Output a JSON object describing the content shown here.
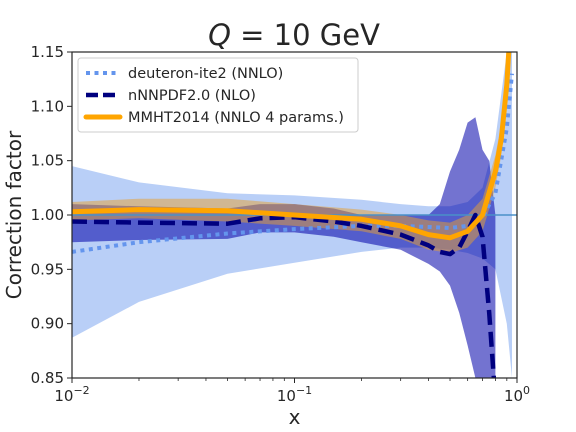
{
  "chart_data": {
    "type": "line",
    "title": {
      "italic_part": "Q",
      "rest": " = 10 GeV"
    },
    "xlabel": "x",
    "ylabel": "Correction factor",
    "xscale": "log",
    "xlim": [
      0.01,
      1
    ],
    "ylim": [
      0.85,
      1.15
    ],
    "grid": false,
    "legend_position": "top-left",
    "x_ticks": [
      {
        "value": 0.01,
        "base": "10",
        "exp": "−2"
      },
      {
        "value": 0.1,
        "base": "10",
        "exp": "−1"
      },
      {
        "value": 1,
        "base": "10",
        "exp": "0"
      }
    ],
    "y_ticks": [
      "0.85",
      "0.90",
      "0.95",
      "1.00",
      "1.05",
      "1.10",
      "1.15"
    ],
    "reference_line": {
      "y": 1.0,
      "color": "#4a90c8"
    },
    "series": [
      {
        "name": "deuteron-ite2 (NNLO)",
        "color": "#6495ed",
        "band_color": "#6495ed",
        "style": "dotted",
        "x": [
          0.01,
          0.02,
          0.05,
          0.1,
          0.2,
          0.3,
          0.4,
          0.5,
          0.6,
          0.7,
          0.8,
          0.9,
          0.95
        ],
        "y": [
          0.966,
          0.975,
          0.983,
          0.987,
          0.99,
          0.99,
          0.989,
          0.988,
          0.99,
          0.998,
          1.02,
          1.08,
          1.13
        ],
        "upper": [
          1.045,
          1.03,
          1.02,
          1.018,
          1.014,
          1.01,
          1.008,
          1.008,
          1.012,
          1.025,
          1.07,
          1.15,
          1.16
        ],
        "lower": [
          0.887,
          0.92,
          0.946,
          0.956,
          0.966,
          0.97,
          0.97,
          0.968,
          0.965,
          0.96,
          0.95,
          0.9,
          0.85
        ]
      },
      {
        "name": "nNNPDF2.0 (NLO)",
        "color": "#00007f",
        "band_color": "#0000aa",
        "style": "dashed",
        "x": [
          0.01,
          0.02,
          0.05,
          0.07,
          0.1,
          0.15,
          0.2,
          0.3,
          0.4,
          0.45,
          0.5,
          0.55,
          0.6,
          0.65,
          0.7,
          0.75,
          0.8
        ],
        "y": [
          0.994,
          0.993,
          0.992,
          0.997,
          0.998,
          0.994,
          0.99,
          0.982,
          0.972,
          0.966,
          0.964,
          0.97,
          0.985,
          1.0,
          0.98,
          0.91,
          0.83
        ],
        "upper": [
          1.01,
          1.008,
          1.006,
          1.01,
          1.01,
          1.006,
          1.0,
          1.0,
          1.0,
          1.01,
          1.04,
          1.06,
          1.085,
          1.09,
          1.06,
          1.05,
          1.0
        ],
        "lower": [
          0.975,
          0.977,
          0.978,
          0.984,
          0.984,
          0.98,
          0.975,
          0.968,
          0.955,
          0.948,
          0.935,
          0.91,
          0.88,
          0.85,
          0.85,
          0.85,
          0.85
        ]
      },
      {
        "name": "MMHT2014 (NNLO 4 params.)",
        "color": "#ffa500",
        "band_color": "#e8a030",
        "style": "solid",
        "x": [
          0.01,
          0.02,
          0.05,
          0.1,
          0.2,
          0.3,
          0.4,
          0.5,
          0.6,
          0.7,
          0.8,
          0.85,
          0.9,
          0.95
        ],
        "y": [
          1.003,
          1.005,
          1.004,
          1.0,
          0.996,
          0.99,
          0.982,
          0.979,
          0.985,
          1.0,
          1.04,
          1.07,
          1.12,
          1.2
        ],
        "upper": [
          1.012,
          1.015,
          1.015,
          1.01,
          1.005,
          1.0,
          0.995,
          0.993,
          1.0,
          1.015,
          1.055,
          1.085,
          1.13,
          1.21
        ],
        "lower": [
          0.995,
          0.997,
          0.994,
          0.99,
          0.985,
          0.978,
          0.968,
          0.965,
          0.97,
          0.985,
          1.025,
          1.055,
          1.105,
          1.19
        ]
      }
    ]
  }
}
